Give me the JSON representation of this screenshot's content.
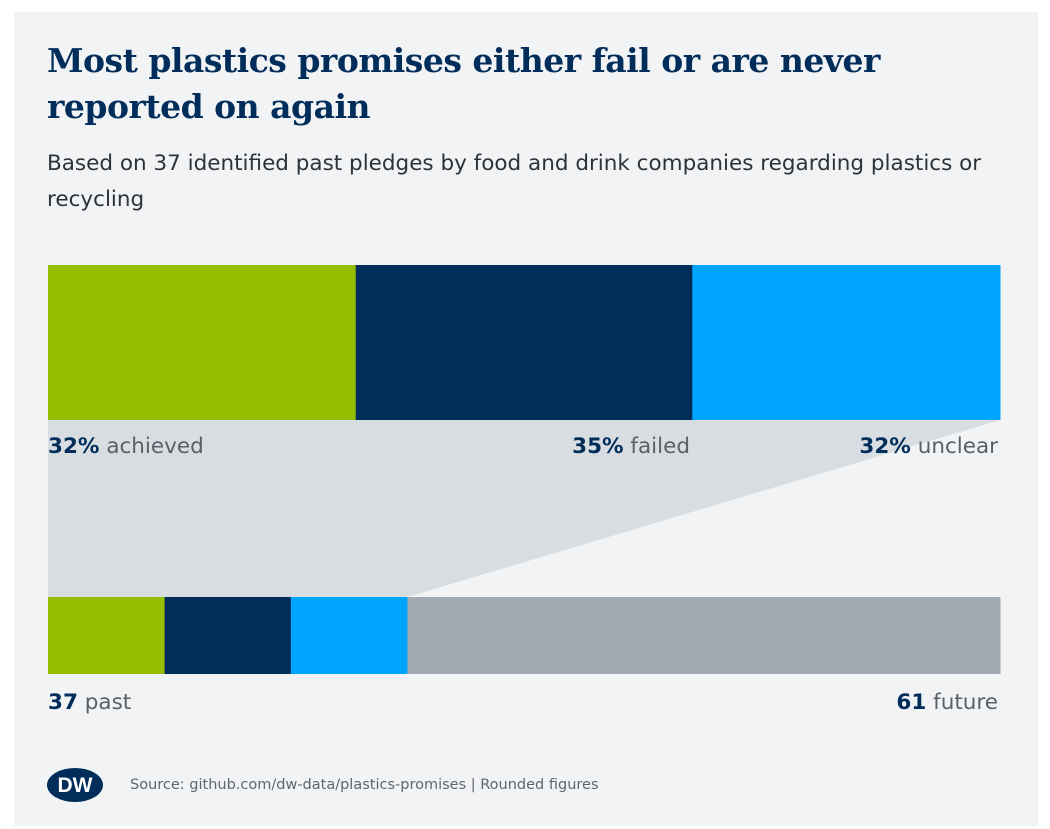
{
  "title": "Most plastics promises either fail or are never reported on again",
  "subtitle": "Based on 37 identified past pledges by food and drink companies regarding plastics or recycling",
  "chart_data": {
    "type": "bar",
    "title": "Most plastics promises either fail or are never reported on again",
    "subtitle": "Based on 37 identified past pledges by food and drink companies regarding plastics or recycling",
    "top_bar": {
      "unit": "%",
      "segments": [
        {
          "key": "achieved",
          "pct_label": "32%",
          "label": "achieved",
          "value": 32,
          "color": "#96be00"
        },
        {
          "key": "failed",
          "pct_label": "35%",
          "label": "failed",
          "value": 35,
          "color": "#002d5a"
        },
        {
          "key": "unclear",
          "pct_label": "32%",
          "label": "unclear",
          "value": 32,
          "color": "#00a5ff"
        }
      ]
    },
    "bottom_bar": {
      "unit": "pledges",
      "segments": [
        {
          "key": "past-achieved",
          "value": 12,
          "color": "#96be00"
        },
        {
          "key": "past-failed",
          "value": 13,
          "color": "#002d5a"
        },
        {
          "key": "past-unclear",
          "value": 12,
          "color": "#00a5ff"
        },
        {
          "key": "future",
          "value": 61,
          "color": "#a2abb3"
        }
      ],
      "labels": {
        "past_count": "37",
        "past_word": "past",
        "future_count": "61",
        "future_word": "future"
      }
    },
    "connector_color": "#d8dde1"
  },
  "source": "Source: github.com/dw-data/plastics-promises | Rounded figures",
  "logo": {
    "text": "DW",
    "color": "#002d5a"
  }
}
